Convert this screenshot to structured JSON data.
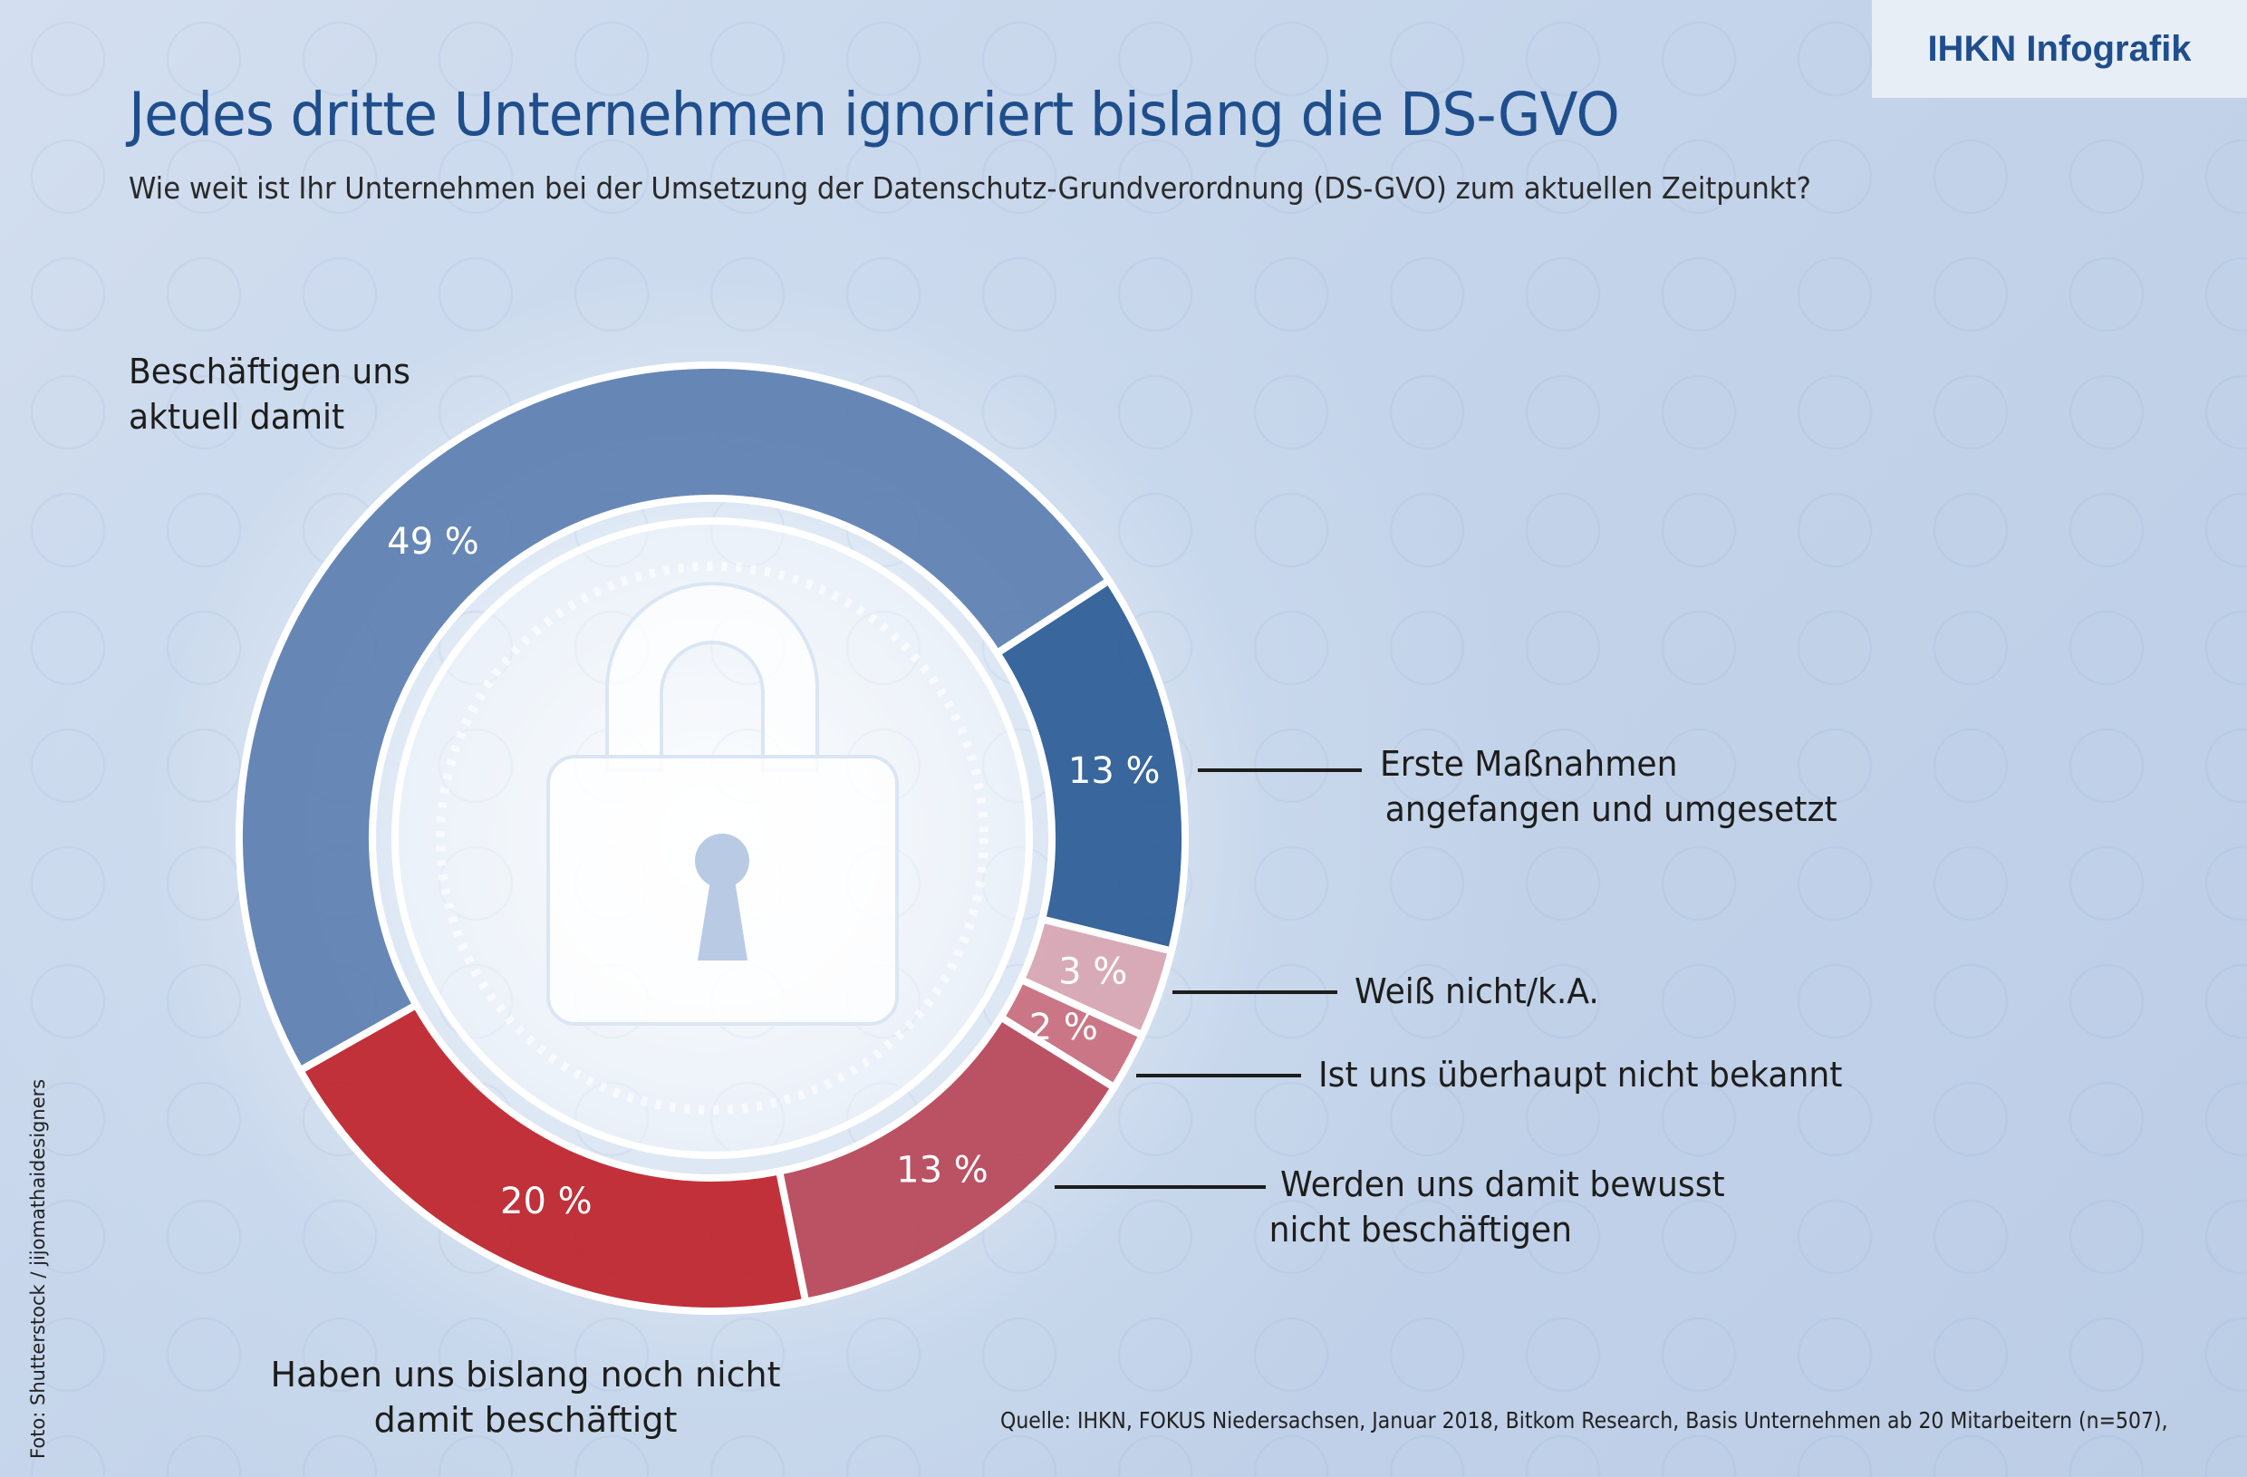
{
  "badge": "IHKN Infografik",
  "title": "Jedes dritte Unternehmen ignoriert bislang die DS-GVO",
  "subtitle": "Wie weit ist Ihr Unternehmen bei der Umsetzung der Datenschutz-Grundverordnung (DS-GVO) zum aktuellen Zeitpunkt?",
  "chart_data": {
    "type": "pie",
    "variant": "donut",
    "title": "Jedes dritte Unternehmen ignoriert bislang die DS-GVO",
    "categories": [
      "Erste Maßnahmen angefangen und umgesetzt",
      "Weiß nicht/k.A.",
      "Ist uns überhaupt nicht bekannt",
      "Werden uns damit bewusst nicht beschäftigen",
      "Haben uns bislang noch nicht damit beschäftigt",
      "Beschäftigen uns aktuell damit"
    ],
    "values": [
      13,
      3,
      2,
      13,
      20,
      49
    ],
    "value_labels": [
      "13 %",
      "3 %",
      "2 %",
      "13 %",
      "20 %",
      "49 %"
    ],
    "colors": [
      "#2f5f98",
      "#d8a7b4",
      "#c9707f",
      "#b84a5c",
      "#c0272f",
      "#5277ac"
    ],
    "unit": "%"
  },
  "labels": {
    "aktuell": [
      "Beschäftigen uns",
      "aktuell damit"
    ],
    "erste": [
      "Erste Maßnahmen",
      "angefangen und umgesetzt"
    ],
    "weiss": "Weiß nicht/k.A.",
    "ist": "Ist uns überhaupt nicht bekannt",
    "werden": [
      "Werden uns damit bewusst",
      "nicht beschäftigen"
    ],
    "haben": [
      "Haben uns bislang noch nicht",
      "damit beschäftigt"
    ]
  },
  "source": "Quelle: IHKN, FOKUS Niedersachsen, Januar 2018, Bitkom Research, Basis Unternehmen ab 20 Mitarbeitern (n=507),",
  "credit": "Foto: Shutterstock / jijomathaidesigners"
}
